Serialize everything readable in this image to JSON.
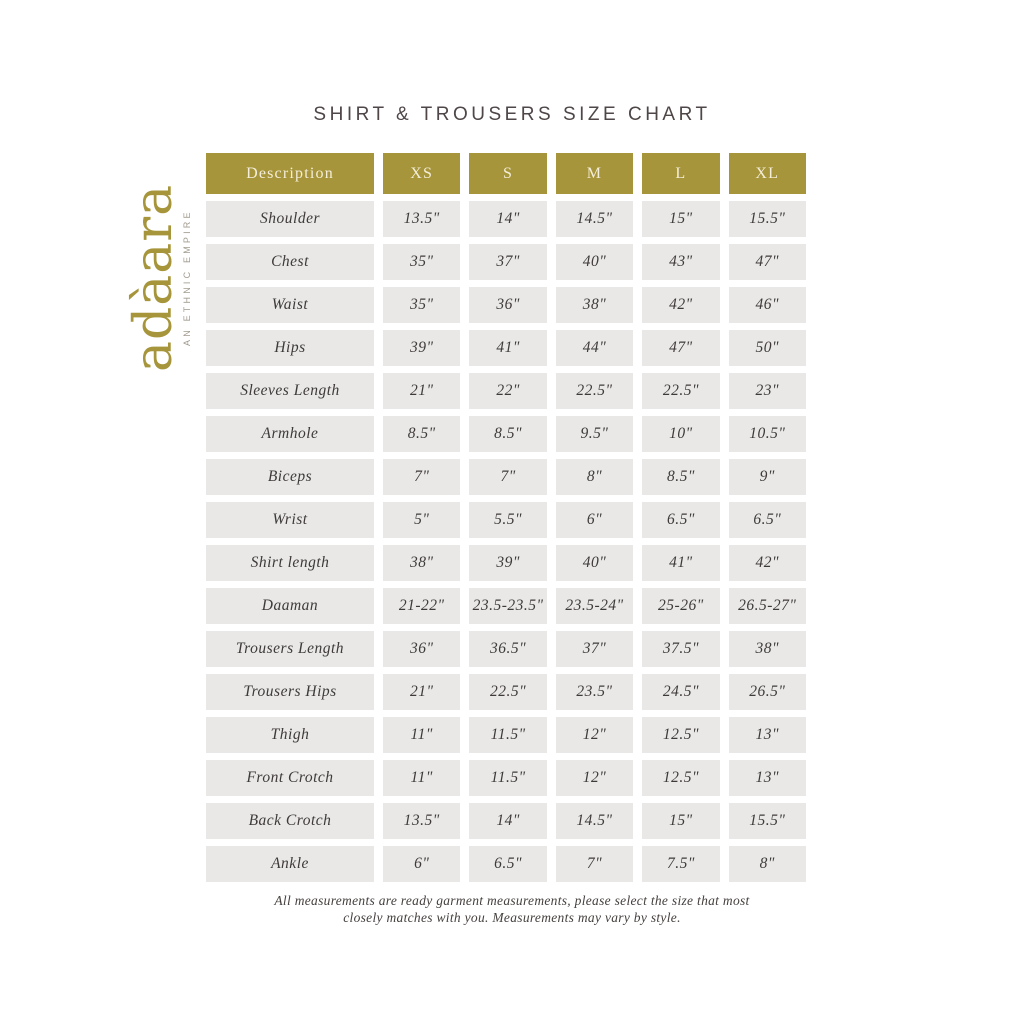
{
  "title": "SHIRT & TROUSERS SIZE CHART",
  "logo": {
    "wordmark": "adàara",
    "tagline": "AN ETHNIC EMPIRE"
  },
  "footer": {
    "lines": [
      "All measurements are ready garment measurements, please select the size that most",
      "closely matches with you. Measurements may vary by style."
    ]
  },
  "colors": {
    "gold": "#a6953a",
    "header_text": "#f4eeda",
    "cell_background": "#e9e8e6",
    "cell_text": "#3e3a39",
    "title_text": "#4e4647",
    "tagline_text": "#a29c8f"
  },
  "chart_data": {
    "type": "table",
    "columns": [
      "Description",
      "XS",
      "S",
      "M",
      "L",
      "XL"
    ],
    "rows": [
      {
        "label": "Shoulder",
        "values": [
          "13.5\"",
          "14\"",
          "14.5\"",
          "15\"",
          "15.5\""
        ]
      },
      {
        "label": "Chest",
        "values": [
          "35\"",
          "37\"",
          "40\"",
          "43\"",
          "47\""
        ]
      },
      {
        "label": "Waist",
        "values": [
          "35\"",
          "36\"",
          "38\"",
          "42\"",
          "46\""
        ]
      },
      {
        "label": "Hips",
        "values": [
          "39\"",
          "41\"",
          "44\"",
          "47\"",
          "50\""
        ]
      },
      {
        "label": "Sleeves Length",
        "values": [
          "21\"",
          "22\"",
          "22.5\"",
          "22.5\"",
          "23\""
        ]
      },
      {
        "label": "Armhole",
        "values": [
          "8.5\"",
          "8.5\"",
          "9.5\"",
          "10\"",
          "10.5\""
        ]
      },
      {
        "label": "Biceps",
        "values": [
          "7\"",
          "7\"",
          "8\"",
          "8.5\"",
          "9\""
        ]
      },
      {
        "label": "Wrist",
        "values": [
          "5\"",
          "5.5\"",
          "6\"",
          "6.5\"",
          "6.5\""
        ]
      },
      {
        "label": "Shirt length",
        "values": [
          "38\"",
          "39\"",
          "40\"",
          "41\"",
          "42\""
        ]
      },
      {
        "label": "Daaman",
        "values": [
          "21-22\"",
          "23.5-23.5\"",
          "23.5-24\"",
          "25-26\"",
          "26.5-27\""
        ]
      },
      {
        "label": "Trousers Length",
        "values": [
          "36\"",
          "36.5\"",
          "37\"",
          "37.5\"",
          "38\""
        ]
      },
      {
        "label": "Trousers Hips",
        "values": [
          "21\"",
          "22.5\"",
          "23.5\"",
          "24.5\"",
          "26.5\""
        ]
      },
      {
        "label": "Thigh",
        "values": [
          "11\"",
          "11.5\"",
          "12\"",
          "12.5\"",
          "13\""
        ]
      },
      {
        "label": "Front Crotch",
        "values": [
          "11\"",
          "11.5\"",
          "12\"",
          "12.5\"",
          "13\""
        ]
      },
      {
        "label": "Back Crotch",
        "values": [
          "13.5\"",
          "14\"",
          "14.5\"",
          "15\"",
          "15.5\""
        ]
      },
      {
        "label": "Ankle",
        "values": [
          "6\"",
          "6.5\"",
          "7\"",
          "7.5\"",
          "8\""
        ]
      }
    ]
  }
}
